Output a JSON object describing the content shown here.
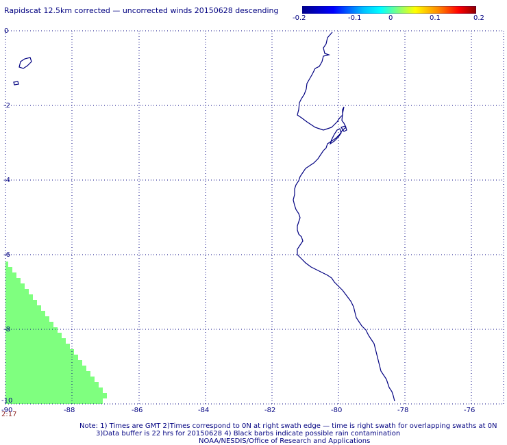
{
  "title": "Rapidscat 12.5km corrected — uncorrected winds 20150628 descending",
  "colorbar": {
    "ticks": [
      "-0.2",
      "-0.1",
      "0",
      "0.1",
      "0.2"
    ],
    "colors": [
      "#00008b",
      "#0000ff",
      "#00bfff",
      "#00ffff",
      "#7fff7f",
      "#ffff00",
      "#ff8c00",
      "#ff0000",
      "#8b0000"
    ]
  },
  "axes": {
    "lat_ticks": [
      "0",
      "-2",
      "-4",
      "-6",
      "-8",
      "-10"
    ],
    "lon_ticks": [
      "-90",
      "-88",
      "-86",
      "-84",
      "-82",
      "-80",
      "-78",
      "-76"
    ]
  },
  "swath": {
    "color": "#7fff7f",
    "time_label": "2:17"
  },
  "colors": {
    "text": "#000080",
    "coast": "#000080",
    "grid": "#000080",
    "time": "#8b2020"
  },
  "notes": {
    "line1": "Note: 1) Times are GMT 2)Times correspond to 0N at right swath edge — time is right swath for overlapping swaths at 0N",
    "line2": "3)Data buffer is 22 hrs for 20150628 4) Black barbs indicate possible rain contamination",
    "line3": "NOAA/NESDIS/Office of Research and Applications"
  }
}
